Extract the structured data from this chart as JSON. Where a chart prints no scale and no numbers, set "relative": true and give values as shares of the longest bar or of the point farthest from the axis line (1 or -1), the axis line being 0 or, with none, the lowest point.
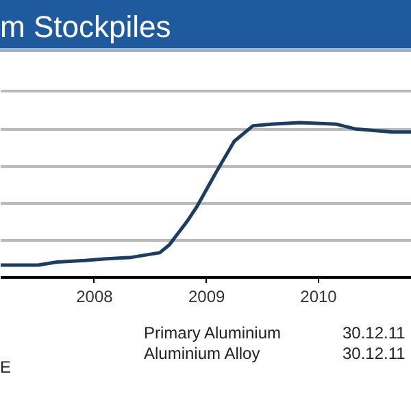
{
  "chart_data": {
    "type": "line",
    "title": "m Stockpiles",
    "relative": true,
    "grid": "y",
    "x": [
      "2007-03",
      "2007-07",
      "2007-09",
      "2007-12",
      "2008-02",
      "2008-05",
      "2008-08",
      "2008-09",
      "2008-11",
      "2008-12",
      "2009-02",
      "2009-04",
      "2009-06",
      "2009-08",
      "2009-11",
      "2010-03",
      "2010-05",
      "2010-07",
      "2010-09",
      "2010-11"
    ],
    "series": [
      {
        "color": "#1c3d63",
        "values": [
          0.08,
          0.08,
          0.1,
          0.11,
          0.12,
          0.13,
          0.16,
          0.21,
          0.37,
          0.46,
          0.68,
          0.88,
          0.98,
          0.99,
          1.0,
          0.99,
          0.96,
          0.95,
          0.94,
          0.94
        ]
      }
    ],
    "xlim": [
      "2007-03",
      "2010-11"
    ],
    "xticks": [
      "2008",
      "2009",
      "2010"
    ],
    "annotations": [
      "Primary Aluminium",
      "30.12.11",
      "Aluminium Alloy",
      "30.12.11",
      "E"
    ]
  }
}
